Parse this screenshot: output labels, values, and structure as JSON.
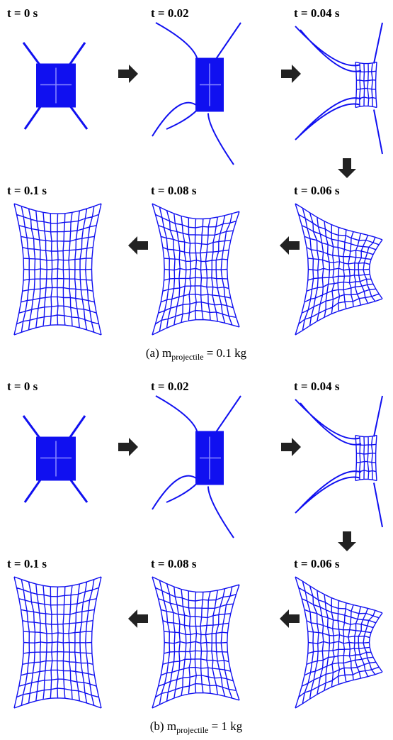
{
  "panels": [
    {
      "frames": [
        {
          "label": "t = 0 s"
        },
        {
          "label": "t = 0.02"
        },
        {
          "label": "t = 0.04 s"
        },
        {
          "label": "t = 0.06 s"
        },
        {
          "label": "t = 0.08 s"
        },
        {
          "label": "t = 0.1 s"
        }
      ],
      "caption": {
        "prefix": "(a)  m",
        "subscript": "projectile",
        "suffix": " = 0.1 kg"
      }
    },
    {
      "frames": [
        {
          "label": "t = 0 s"
        },
        {
          "label": "t = 0.02"
        },
        {
          "label": "t = 0.04 s"
        },
        {
          "label": "t = 0.06 s"
        },
        {
          "label": "t = 0.08 s"
        },
        {
          "label": "t = 0.1 s"
        }
      ],
      "caption": {
        "prefix": "(b)  m",
        "subscript": "projectile",
        "suffix": " = 1 kg"
      }
    }
  ]
}
